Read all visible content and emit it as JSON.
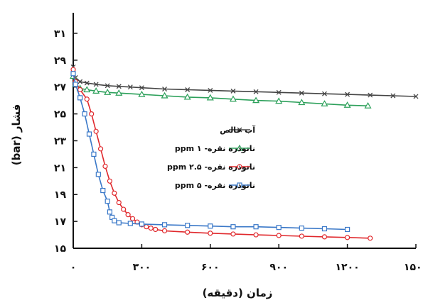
{
  "chart_data": {
    "type": "line",
    "xlabel": "زمان (دقیقه)",
    "ylabel": "فشار (bar)",
    "xlim": [
      0,
      1500
    ],
    "ylim": [
      15,
      32
    ],
    "x_ticks": [
      0,
      300,
      600,
      900,
      1200,
      1500
    ],
    "x_tick_labels": [
      "۰",
      "۳۰۰",
      "۶۰۰",
      "۹۰۰",
      "۱۲۰۰",
      "۱۵۰۰"
    ],
    "y_ticks": [
      15,
      17,
      19,
      21,
      23,
      25,
      27,
      29,
      31
    ],
    "y_tick_labels": [
      "۱۵",
      "۱۷",
      "۱۹",
      "۲۱",
      "۲۳",
      "۲۵",
      "۲۷",
      "۲۹",
      "۳۱"
    ],
    "grid": false,
    "legend_position": "center-right",
    "series": [
      {
        "name": "آب خالص",
        "color": "#444444",
        "marker": "x",
        "x": [
          0,
          10,
          30,
          60,
          100,
          150,
          200,
          250,
          300,
          400,
          500,
          600,
          700,
          800,
          900,
          1000,
          1100,
          1200,
          1300,
          1400,
          1500
        ],
        "y": [
          28.5,
          27.7,
          27.4,
          27.3,
          27.2,
          27.1,
          27.05,
          27.0,
          26.95,
          26.85,
          26.8,
          26.75,
          26.7,
          26.65,
          26.6,
          26.55,
          26.5,
          26.45,
          26.4,
          26.35,
          26.3
        ]
      },
      {
        "name": "نانوذره نقره- ۱ ppm",
        "color": "#2ca05a",
        "marker": "triangle",
        "x": [
          0,
          10,
          30,
          60,
          100,
          150,
          200,
          300,
          400,
          500,
          600,
          700,
          800,
          900,
          1000,
          1100,
          1200,
          1290
        ],
        "y": [
          27.8,
          27.2,
          26.9,
          26.8,
          26.7,
          26.6,
          26.55,
          26.45,
          26.35,
          26.25,
          26.2,
          26.1,
          26.0,
          25.95,
          25.85,
          25.75,
          25.65,
          25.6
        ]
      },
      {
        "name": "نانوذره نقره- ۲.۵ ppm",
        "color": "#e0282c",
        "marker": "circle",
        "x": [
          0,
          10,
          30,
          60,
          80,
          100,
          120,
          140,
          160,
          180,
          200,
          220,
          240,
          260,
          280,
          300,
          320,
          340,
          360,
          400,
          500,
          600,
          700,
          800,
          900,
          1000,
          1100,
          1200,
          1300
        ],
        "y": [
          28.3,
          27.4,
          26.8,
          26.1,
          25.0,
          23.7,
          22.4,
          21.1,
          20.0,
          19.1,
          18.4,
          17.9,
          17.5,
          17.2,
          16.95,
          16.75,
          16.6,
          16.5,
          16.4,
          16.3,
          16.2,
          16.12,
          16.06,
          16.0,
          15.95,
          15.9,
          15.85,
          15.8,
          15.75
        ]
      },
      {
        "name": "نانوذره نقره- ۵ ppm",
        "color": "#3a78c8",
        "marker": "square",
        "x": [
          0,
          10,
          30,
          50,
          70,
          90,
          110,
          130,
          150,
          160,
          170,
          180,
          200,
          250,
          300,
          400,
          500,
          600,
          700,
          800,
          900,
          1000,
          1100,
          1200
        ],
        "y": [
          28.0,
          27.2,
          26.2,
          25.0,
          23.5,
          22.0,
          20.5,
          19.3,
          18.5,
          17.7,
          17.3,
          17.05,
          16.9,
          16.85,
          16.8,
          16.75,
          16.7,
          16.65,
          16.6,
          16.6,
          16.55,
          16.5,
          16.45,
          16.4
        ]
      }
    ]
  }
}
